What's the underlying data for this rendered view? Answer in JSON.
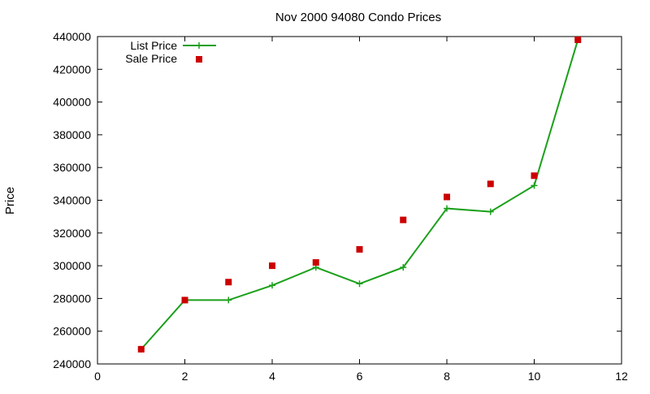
{
  "chart_data": {
    "type": "line",
    "title": "Nov 2000 94080 Condo Prices",
    "xlabel": "",
    "ylabel": "Price",
    "xlim": [
      0,
      12
    ],
    "ylim": [
      240000,
      440000
    ],
    "x_ticks": [
      0,
      2,
      4,
      6,
      8,
      10,
      12
    ],
    "y_ticks": [
      240000,
      260000,
      280000,
      300000,
      320000,
      340000,
      360000,
      380000,
      400000,
      420000,
      440000
    ],
    "grid": false,
    "legend_position": "top-left",
    "series": [
      {
        "name": "List Price",
        "style": "line-with-plus-markers",
        "color": "#1aa01a",
        "x": [
          1,
          2,
          3,
          4,
          5,
          6,
          7,
          8,
          9,
          10,
          11
        ],
        "values": [
          249000,
          279000,
          279000,
          288000,
          299000,
          289000,
          299000,
          335000,
          333000,
          349000,
          438000
        ]
      },
      {
        "name": "Sale Price",
        "style": "square-markers",
        "color": "#cc0000",
        "x": [
          1,
          2,
          3,
          4,
          5,
          6,
          7,
          8,
          9,
          10,
          11
        ],
        "values": [
          249000,
          279000,
          290000,
          300000,
          302000,
          310000,
          328000,
          342000,
          350000,
          355000,
          438000
        ]
      }
    ]
  }
}
